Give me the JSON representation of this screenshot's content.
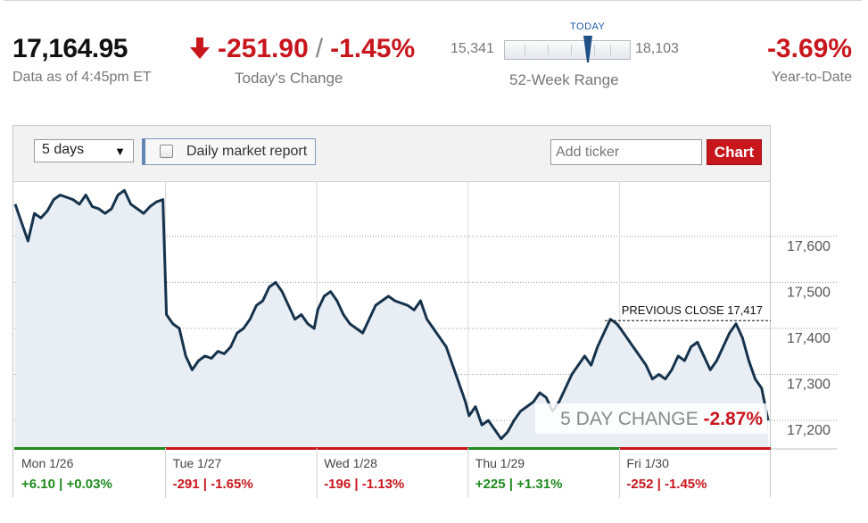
{
  "quote": {
    "price": "17,164.95",
    "as_of": "Data as of 4:45pm ET",
    "change_points": "-251.90",
    "change_sep": "/",
    "change_percent": "-1.45%",
    "change_label": "Today's Change",
    "range_low": "15,341",
    "range_high": "18,103",
    "range_today_label": "TODAY",
    "range_label": "52-Week Range",
    "range_position": 0.665,
    "ytd_value": "-3.69%",
    "ytd_label": "Year-to-Date"
  },
  "toolbar": {
    "period_value": "5 days",
    "report_label": "Daily market report",
    "report_checked": false,
    "ticker_placeholder": "Add ticker",
    "chart_button": "Chart"
  },
  "colors": {
    "line": "#16334d",
    "area": "#e9eef5",
    "down": "#c8161d",
    "up": "#1e8b1e",
    "volume": "#c9ced6"
  },
  "chart_data": {
    "type": "line",
    "y_ticks": [
      "17,600",
      "17,500",
      "17,400",
      "17,300",
      "17,200"
    ],
    "y_tick_values": [
      17600,
      17500,
      17400,
      17300,
      17200
    ],
    "ylim": [
      17140,
      17720
    ],
    "grid": true,
    "previous_close": {
      "label": "PREVIOUS CLOSE 17,417",
      "value": 17417
    },
    "five_day_change": {
      "label": "5 DAY CHANGE",
      "value": "-2.87%"
    },
    "days": [
      {
        "label": "Mon 1/26",
        "change": "+6.10 | +0.03%",
        "direction": "up",
        "values": [
          17670,
          17630,
          17590,
          17650,
          17640,
          17655,
          17680,
          17690,
          17685,
          17680,
          17670,
          17690,
          17665,
          17660,
          17650,
          17660,
          17690,
          17700,
          17670,
          17660,
          17650,
          17665,
          17675,
          17680
        ]
      },
      {
        "label": "Tue 1/27",
        "change": "-291 | -1.65%",
        "direction": "down",
        "values": [
          17430,
          17410,
          17400,
          17340,
          17310,
          17330,
          17340,
          17335,
          17350,
          17345,
          17360,
          17390,
          17400,
          17420,
          17450,
          17460,
          17490,
          17500,
          17480,
          17450,
          17420,
          17430,
          17410,
          17400
        ]
      },
      {
        "label": "Wed 1/28",
        "change": "-196 | -1.13%",
        "direction": "down",
        "values": [
          17440,
          17470,
          17480,
          17460,
          17430,
          17410,
          17400,
          17390,
          17420,
          17450,
          17460,
          17470,
          17460,
          17455,
          17450,
          17440,
          17460,
          17420,
          17400,
          17380,
          17360,
          17320,
          17280,
          17240
        ]
      },
      {
        "label": "Thu 1/29",
        "change": "+225 | +1.31%",
        "direction": "up",
        "values": [
          17210,
          17230,
          17190,
          17200,
          17180,
          17160,
          17175,
          17200,
          17220,
          17230,
          17240,
          17260,
          17250,
          17220,
          17240,
          17270,
          17300,
          17320,
          17340,
          17320,
          17360,
          17390,
          17420,
          17410
        ]
      },
      {
        "label": "Fri 1/30",
        "change": "-252 | -1.45%",
        "direction": "down",
        "values": [
          17400,
          17380,
          17360,
          17340,
          17320,
          17290,
          17300,
          17290,
          17310,
          17340,
          17330,
          17360,
          17370,
          17340,
          17310,
          17330,
          17360,
          17390,
          17410,
          17380,
          17330,
          17290,
          17270,
          17200
        ]
      }
    ]
  }
}
